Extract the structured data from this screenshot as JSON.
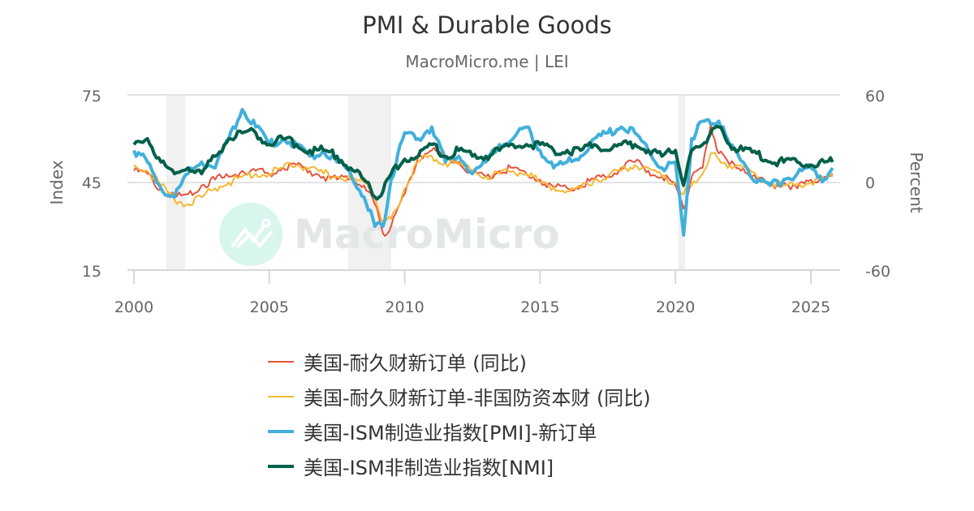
{
  "header": {
    "title": "PMI & Durable Goods",
    "subtitle": "MacroMicro.me | LEI"
  },
  "watermark": {
    "text": "MacroMicro"
  },
  "chart_data": {
    "type": "line",
    "title": "PMI & Durable Goods",
    "subtitle": "MacroMicro.me | LEI",
    "xlabel": "",
    "ylabel_left": "Index",
    "ylabel_right": "Percent",
    "ylim_left": [
      15,
      75
    ],
    "ylim_right": [
      -60,
      60
    ],
    "xlim": [
      2000,
      2026
    ],
    "x_ticks": [
      "2000",
      "2005",
      "2010",
      "2015",
      "2020",
      "2025"
    ],
    "y_ticks_left": [
      "75",
      "45",
      "15"
    ],
    "y_ticks_right": [
      "60",
      "0",
      "-60"
    ],
    "grid": true,
    "legend_position": "bottom",
    "recession_bands": [
      [
        2001.2,
        2001.9
      ],
      [
        2007.9,
        2009.5
      ],
      [
        2020.1,
        2020.35
      ]
    ],
    "x": [
      2000.0,
      2000.5,
      2001.0,
      2001.5,
      2002.0,
      2002.5,
      2003.0,
      2003.5,
      2004.0,
      2004.5,
      2005.0,
      2005.5,
      2006.0,
      2006.5,
      2007.0,
      2007.5,
      2008.0,
      2008.5,
      2008.9,
      2009.2,
      2009.5,
      2010.0,
      2010.5,
      2011.0,
      2011.5,
      2012.0,
      2012.5,
      2013.0,
      2013.5,
      2014.0,
      2014.5,
      2015.0,
      2015.5,
      2016.0,
      2016.5,
      2017.0,
      2017.5,
      2018.0,
      2018.5,
      2019.0,
      2019.5,
      2020.0,
      2020.3,
      2020.6,
      2021.0,
      2021.3,
      2021.6,
      2022.0,
      2022.5,
      2023.0,
      2023.5,
      2024.0,
      2024.5,
      2025.0,
      2025.5,
      2025.8
    ],
    "series": [
      {
        "name": "美国-耐久财新订单 (同比)",
        "axis": "right",
        "color": "#E5533C",
        "values": [
          8,
          6,
          -5,
          -10,
          -8,
          -2,
          2,
          4,
          8,
          8,
          6,
          10,
          12,
          8,
          4,
          2,
          3,
          -2,
          -15,
          -35,
          -30,
          -8,
          18,
          22,
          16,
          14,
          6,
          4,
          8,
          10,
          6,
          2,
          -3,
          -4,
          -2,
          2,
          4,
          10,
          14,
          8,
          4,
          -2,
          -18,
          4,
          10,
          40,
          20,
          12,
          10,
          2,
          -2,
          0,
          -4,
          2,
          4,
          6
        ]
      },
      {
        "name": "美国-耐久财新订单-非国防资本财 (同比)",
        "axis": "right",
        "color": "#F7B731",
        "values": [
          12,
          8,
          -2,
          -12,
          -15,
          -10,
          -4,
          0,
          4,
          6,
          6,
          10,
          12,
          10,
          6,
          4,
          2,
          0,
          -10,
          -28,
          -25,
          -4,
          14,
          18,
          14,
          12,
          8,
          4,
          6,
          8,
          6,
          0,
          -3,
          -6,
          -4,
          2,
          4,
          8,
          12,
          10,
          4,
          0,
          -8,
          -2,
          6,
          20,
          16,
          12,
          10,
          4,
          0,
          -2,
          -1,
          0,
          2,
          4
        ]
      },
      {
        "name": "美国-ISM制造业指数[PMI]-新订单",
        "axis": "left",
        "color": "#41B0DB",
        "values": [
          56,
          52,
          43,
          40,
          48,
          52,
          50,
          60,
          70,
          64,
          58,
          60,
          58,
          54,
          56,
          52,
          48,
          40,
          30,
          30,
          46,
          62,
          60,
          64,
          52,
          54,
          48,
          52,
          58,
          60,
          64,
          56,
          50,
          52,
          54,
          60,
          62,
          64,
          62,
          56,
          50,
          52,
          27,
          60,
          66,
          65,
          66,
          58,
          52,
          45,
          44,
          46,
          48,
          50,
          46,
          50
        ]
      },
      {
        "name": "美国-ISM非制造业指数[NMI]",
        "axis": "left",
        "color": "#00604A",
        "values": [
          58,
          60,
          52,
          48,
          50,
          48,
          54,
          60,
          62,
          62,
          58,
          60,
          58,
          56,
          56,
          54,
          50,
          46,
          40,
          42,
          48,
          53,
          54,
          58,
          54,
          56,
          54,
          54,
          56,
          58,
          58,
          58,
          56,
          56,
          56,
          58,
          56,
          58,
          58,
          56,
          54,
          56,
          44,
          56,
          58,
          62,
          64,
          58,
          56,
          55,
          52,
          52,
          52,
          51,
          52,
          52
        ]
      }
    ]
  },
  "legend": {
    "items": [
      {
        "label": "美国-耐久财新订单 (同比)",
        "color": "#E5533C"
      },
      {
        "label": "美国-耐久财新订单-非国防资本财 (同比)",
        "color": "#F7B731"
      },
      {
        "label": "美国-ISM制造业指数[PMI]-新订单",
        "color": "#41B0DB"
      },
      {
        "label": "美国-ISM非制造业指数[NMI]",
        "color": "#00604A"
      }
    ]
  }
}
